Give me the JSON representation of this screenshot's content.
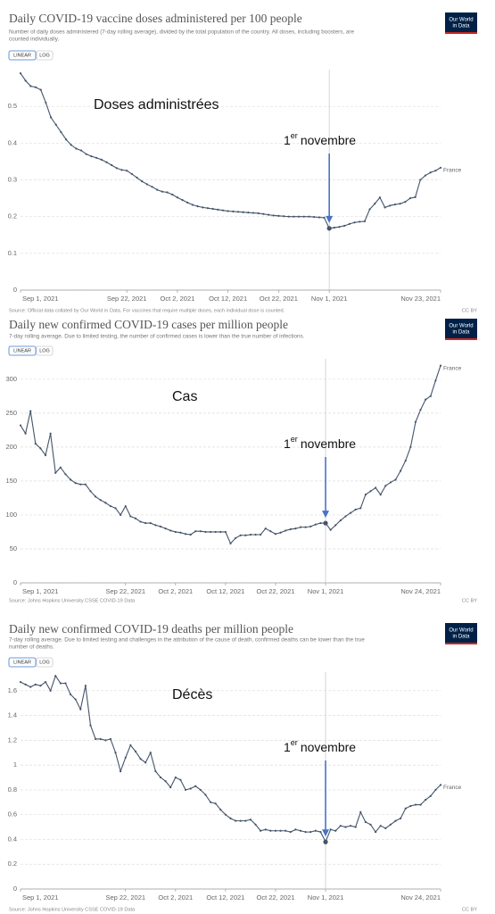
{
  "chart_data": [
    {
      "type": "line",
      "title": "Daily COVID-19 vaccine doses administered per 100 people",
      "subtitle": [
        "Number of daily doses administered (7-day rolling average), divided by the total population of the country. All doses, including boosters, are",
        "counted individually."
      ],
      "buttons": [
        "LINEAR",
        "LOG"
      ],
      "log_scale": false,
      "logo": [
        "Our World",
        "in Data"
      ],
      "source": "Source: Official data collated by Our World in Data. For vaccines that require multiple doses, each individual dose is counted.",
      "license": "CC BY",
      "annotation_title": "Doses administrées",
      "annotation": {
        "text": [
          "1",
          "er",
          "novembre"
        ],
        "x": "2021-11-01"
      },
      "grid": true,
      "xlim": [
        "2021-09-01",
        "2021-11-23"
      ],
      "ylim": [
        0,
        0.6
      ],
      "yticks": [
        0,
        0.1,
        0.2,
        0.3,
        0.4,
        0.5
      ],
      "xticks": [
        {
          "value": "2021-09-01",
          "label": "Sep 1, 2021"
        },
        {
          "value": "2021-09-22",
          "label": "Sep 22, 2021"
        },
        {
          "value": "2021-10-02",
          "label": "Oct 2, 2021"
        },
        {
          "value": "2021-10-12",
          "label": "Oct 12, 2021"
        },
        {
          "value": "2021-10-22",
          "label": "Oct 22, 2021"
        },
        {
          "value": "2021-11-01",
          "label": "Nov 1, 2021"
        },
        {
          "value": "2021-11-23",
          "label": "Nov 23, 2021"
        }
      ],
      "x": [
        "2021-09-01",
        "2021-09-02",
        "2021-09-03",
        "2021-09-04",
        "2021-09-05",
        "2021-09-06",
        "2021-09-07",
        "2021-09-08",
        "2021-09-09",
        "2021-09-10",
        "2021-09-11",
        "2021-09-12",
        "2021-09-13",
        "2021-09-14",
        "2021-09-15",
        "2021-09-16",
        "2021-09-17",
        "2021-09-18",
        "2021-09-19",
        "2021-09-20",
        "2021-09-21",
        "2021-09-22",
        "2021-09-23",
        "2021-09-24",
        "2021-09-25",
        "2021-09-26",
        "2021-09-27",
        "2021-09-28",
        "2021-09-29",
        "2021-09-30",
        "2021-10-01",
        "2021-10-02",
        "2021-10-03",
        "2021-10-04",
        "2021-10-05",
        "2021-10-06",
        "2021-10-07",
        "2021-10-08",
        "2021-10-09",
        "2021-10-10",
        "2021-10-11",
        "2021-10-12",
        "2021-10-13",
        "2021-10-14",
        "2021-10-15",
        "2021-10-16",
        "2021-10-17",
        "2021-10-18",
        "2021-10-19",
        "2021-10-20",
        "2021-10-21",
        "2021-10-22",
        "2021-10-23",
        "2021-10-24",
        "2021-10-25",
        "2021-10-26",
        "2021-10-27",
        "2021-10-28",
        "2021-10-29",
        "2021-10-30",
        "2021-10-31",
        "2021-11-01",
        "2021-11-02",
        "2021-11-03",
        "2021-11-04",
        "2021-11-05",
        "2021-11-06",
        "2021-11-07",
        "2021-11-08",
        "2021-11-09",
        "2021-11-10",
        "2021-11-11",
        "2021-11-12",
        "2021-11-13",
        "2021-11-14",
        "2021-11-15",
        "2021-11-16",
        "2021-11-17",
        "2021-11-18",
        "2021-11-19",
        "2021-11-20",
        "2021-11-21",
        "2021-11-22",
        "2021-11-23"
      ],
      "series": [
        {
          "name": "France",
          "color": "#44546a",
          "values": [
            0.59,
            0.57,
            0.555,
            0.552,
            0.545,
            0.51,
            0.47,
            0.45,
            0.43,
            0.41,
            0.395,
            0.385,
            0.38,
            0.37,
            0.364,
            0.36,
            0.355,
            0.348,
            0.34,
            0.332,
            0.327,
            0.325,
            0.316,
            0.306,
            0.296,
            0.288,
            0.281,
            0.273,
            0.268,
            0.266,
            0.26,
            0.252,
            0.245,
            0.238,
            0.232,
            0.228,
            0.225,
            0.223,
            0.221,
            0.219,
            0.217,
            0.215,
            0.214,
            0.213,
            0.212,
            0.211,
            0.21,
            0.209,
            0.207,
            0.205,
            0.203,
            0.202,
            0.201,
            0.2,
            0.2,
            0.2,
            0.2,
            0.2,
            0.199,
            0.198,
            0.197,
            0.168,
            0.17,
            0.172,
            0.175,
            0.18,
            0.184,
            0.186,
            0.187,
            0.22,
            0.235,
            0.252,
            0.225,
            0.23,
            0.233,
            0.235,
            0.24,
            0.25,
            0.253,
            0.3,
            0.312,
            0.32,
            0.325,
            0.333
          ]
        }
      ]
    },
    {
      "type": "line",
      "title": "Daily new confirmed COVID-19 cases per million people",
      "subtitle": [
        "7-day rolling average. Due to limited testing, the number of confirmed cases is lower than the true number of infections."
      ],
      "buttons": [
        "LINEAR",
        "LOG"
      ],
      "log_scale": false,
      "logo": [
        "Our World",
        "in Data"
      ],
      "source": "Source: Johns Hopkins University CSSE COVID-19 Data",
      "license": "CC BY",
      "annotation_title": "Cas",
      "annotation": {
        "text": [
          "1",
          "er",
          "novembre"
        ],
        "x": "2021-11-01"
      },
      "grid": true,
      "xlim": [
        "2021-09-01",
        "2021-11-24"
      ],
      "ylim": [
        0,
        330
      ],
      "yticks": [
        0,
        50,
        100,
        150,
        200,
        250,
        300
      ],
      "xticks": [
        {
          "value": "2021-09-01",
          "label": "Sep 1, 2021"
        },
        {
          "value": "2021-09-22",
          "label": "Sep 22, 2021"
        },
        {
          "value": "2021-10-02",
          "label": "Oct 2, 2021"
        },
        {
          "value": "2021-10-12",
          "label": "Oct 12, 2021"
        },
        {
          "value": "2021-10-22",
          "label": "Oct 22, 2021"
        },
        {
          "value": "2021-11-01",
          "label": "Nov 1, 2021"
        },
        {
          "value": "2021-11-24",
          "label": "Nov 24, 2021"
        }
      ],
      "x": [
        "2021-09-01",
        "2021-09-02",
        "2021-09-03",
        "2021-09-04",
        "2021-09-05",
        "2021-09-06",
        "2021-09-07",
        "2021-09-08",
        "2021-09-09",
        "2021-09-10",
        "2021-09-11",
        "2021-09-12",
        "2021-09-13",
        "2021-09-14",
        "2021-09-15",
        "2021-09-16",
        "2021-09-17",
        "2021-09-18",
        "2021-09-19",
        "2021-09-20",
        "2021-09-21",
        "2021-09-22",
        "2021-09-23",
        "2021-09-24",
        "2021-09-25",
        "2021-09-26",
        "2021-09-27",
        "2021-09-28",
        "2021-09-29",
        "2021-09-30",
        "2021-10-01",
        "2021-10-02",
        "2021-10-03",
        "2021-10-04",
        "2021-10-05",
        "2021-10-06",
        "2021-10-07",
        "2021-10-08",
        "2021-10-09",
        "2021-10-10",
        "2021-10-11",
        "2021-10-12",
        "2021-10-13",
        "2021-10-14",
        "2021-10-15",
        "2021-10-16",
        "2021-10-17",
        "2021-10-18",
        "2021-10-19",
        "2021-10-20",
        "2021-10-21",
        "2021-10-22",
        "2021-10-23",
        "2021-10-24",
        "2021-10-25",
        "2021-10-26",
        "2021-10-27",
        "2021-10-28",
        "2021-10-29",
        "2021-10-30",
        "2021-10-31",
        "2021-11-01",
        "2021-11-02",
        "2021-11-03",
        "2021-11-04",
        "2021-11-05",
        "2021-11-06",
        "2021-11-07",
        "2021-11-08",
        "2021-11-09",
        "2021-11-10",
        "2021-11-11",
        "2021-11-12",
        "2021-11-13",
        "2021-11-14",
        "2021-11-15",
        "2021-11-16",
        "2021-11-17",
        "2021-11-18",
        "2021-11-19",
        "2021-11-20",
        "2021-11-21",
        "2021-11-22",
        "2021-11-23",
        "2021-11-24"
      ],
      "series": [
        {
          "name": "France",
          "color": "#44546a",
          "values": [
            232,
            220,
            253,
            205,
            198,
            188,
            220,
            162,
            170,
            160,
            152,
            147,
            145,
            145,
            135,
            127,
            122,
            118,
            113,
            110,
            100,
            113,
            98,
            95,
            90,
            88,
            88,
            85,
            83,
            80,
            77,
            75,
            74,
            72,
            71,
            76,
            76,
            75,
            75,
            75,
            75,
            75,
            58,
            66,
            70,
            70,
            71,
            71,
            71,
            80,
            76,
            72,
            74,
            77,
            79,
            80,
            82,
            82,
            83,
            86,
            88,
            88,
            78,
            85,
            92,
            98,
            103,
            108,
            110,
            130,
            135,
            140,
            130,
            143,
            148,
            152,
            165,
            180,
            200,
            237,
            255,
            270,
            275,
            298,
            320
          ]
        }
      ]
    },
    {
      "type": "line",
      "title": "Daily new confirmed COVID-19 deaths per million people",
      "subtitle": [
        "7-day rolling average. Due to limited testing and challenges in the attribution of the cause of death, confirmed deaths can be lower than the true",
        "number of deaths."
      ],
      "buttons": [
        "LINEAR",
        "LOG"
      ],
      "log_scale": false,
      "logo": [
        "Our World",
        "in Data"
      ],
      "source": "Source: Johns Hopkins University CSSE COVID-19 Data",
      "license": "CC BY",
      "annotation_title": "Décès",
      "annotation": {
        "text": [
          "1",
          "er",
          "novembre"
        ],
        "x": "2021-11-01"
      },
      "grid": true,
      "xlim": [
        "2021-09-01",
        "2021-11-24"
      ],
      "ylim": [
        0,
        1.75
      ],
      "yticks": [
        0,
        0.2,
        0.4,
        0.6,
        0.8,
        1,
        1.2,
        1.4,
        1.6
      ],
      "xticks": [
        {
          "value": "2021-09-01",
          "label": "Sep 1, 2021"
        },
        {
          "value": "2021-09-22",
          "label": "Sep 22, 2021"
        },
        {
          "value": "2021-10-02",
          "label": "Oct 2, 2021"
        },
        {
          "value": "2021-10-12",
          "label": "Oct 12, 2021"
        },
        {
          "value": "2021-10-22",
          "label": "Oct 22, 2021"
        },
        {
          "value": "2021-11-01",
          "label": "Nov 1, 2021"
        },
        {
          "value": "2021-11-24",
          "label": "Nov 24, 2021"
        }
      ],
      "x": [
        "2021-09-01",
        "2021-09-02",
        "2021-09-03",
        "2021-09-04",
        "2021-09-05",
        "2021-09-06",
        "2021-09-07",
        "2021-09-08",
        "2021-09-09",
        "2021-09-10",
        "2021-09-11",
        "2021-09-12",
        "2021-09-13",
        "2021-09-14",
        "2021-09-15",
        "2021-09-16",
        "2021-09-17",
        "2021-09-18",
        "2021-09-19",
        "2021-09-20",
        "2021-09-21",
        "2021-09-22",
        "2021-09-23",
        "2021-09-24",
        "2021-09-25",
        "2021-09-26",
        "2021-09-27",
        "2021-09-28",
        "2021-09-29",
        "2021-09-30",
        "2021-10-01",
        "2021-10-02",
        "2021-10-03",
        "2021-10-04",
        "2021-10-05",
        "2021-10-06",
        "2021-10-07",
        "2021-10-08",
        "2021-10-09",
        "2021-10-10",
        "2021-10-11",
        "2021-10-12",
        "2021-10-13",
        "2021-10-14",
        "2021-10-15",
        "2021-10-16",
        "2021-10-17",
        "2021-10-18",
        "2021-10-19",
        "2021-10-20",
        "2021-10-21",
        "2021-10-22",
        "2021-10-23",
        "2021-10-24",
        "2021-10-25",
        "2021-10-26",
        "2021-10-27",
        "2021-10-28",
        "2021-10-29",
        "2021-10-30",
        "2021-10-31",
        "2021-11-01",
        "2021-11-02",
        "2021-11-03",
        "2021-11-04",
        "2021-11-05",
        "2021-11-06",
        "2021-11-07",
        "2021-11-08",
        "2021-11-09",
        "2021-11-10",
        "2021-11-11",
        "2021-11-12",
        "2021-11-13",
        "2021-11-14",
        "2021-11-15",
        "2021-11-16",
        "2021-11-17",
        "2021-11-18",
        "2021-11-19",
        "2021-11-20",
        "2021-11-21",
        "2021-11-22",
        "2021-11-23",
        "2021-11-24"
      ],
      "series": [
        {
          "name": "France",
          "color": "#44546a",
          "values": [
            1.67,
            1.65,
            1.63,
            1.65,
            1.64,
            1.67,
            1.6,
            1.72,
            1.66,
            1.66,
            1.57,
            1.53,
            1.45,
            1.64,
            1.32,
            1.21,
            1.21,
            1.2,
            1.21,
            1.1,
            0.95,
            1.06,
            1.16,
            1.11,
            1.05,
            1.02,
            1.1,
            0.95,
            0.9,
            0.87,
            0.82,
            0.9,
            0.88,
            0.8,
            0.81,
            0.83,
            0.8,
            0.76,
            0.7,
            0.69,
            0.64,
            0.6,
            0.57,
            0.55,
            0.55,
            0.55,
            0.56,
            0.52,
            0.47,
            0.48,
            0.47,
            0.47,
            0.47,
            0.47,
            0.46,
            0.48,
            0.47,
            0.46,
            0.46,
            0.47,
            0.46,
            0.38,
            0.48,
            0.47,
            0.51,
            0.5,
            0.51,
            0.5,
            0.62,
            0.54,
            0.52,
            0.46,
            0.51,
            0.49,
            0.52,
            0.55,
            0.57,
            0.65,
            0.67,
            0.68,
            0.68,
            0.72,
            0.75,
            0.8,
            0.84
          ]
        }
      ]
    }
  ]
}
